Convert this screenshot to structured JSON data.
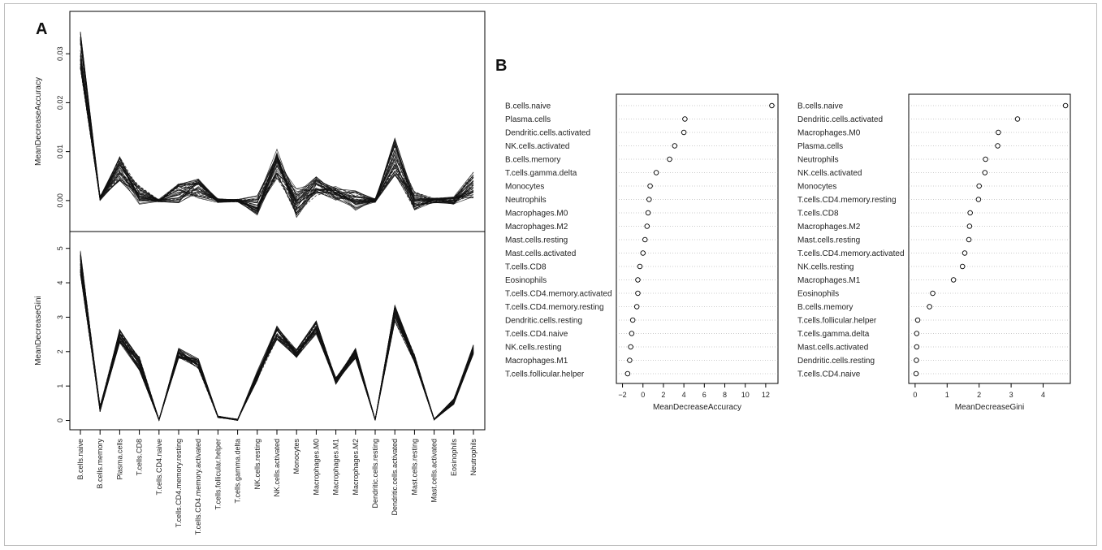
{
  "panels": {
    "a_label": "A",
    "b_label": "B"
  },
  "chart_data": [
    {
      "type": "line",
      "panel": "A",
      "subplot": "top",
      "ylabel": "MeanDecreaseAccuracy",
      "ylim": [
        -0.006,
        0.038
      ],
      "yticks": [
        0.0,
        0.01,
        0.02,
        0.03
      ],
      "ytick_labels": [
        "0.00",
        "0.01",
        "0.02",
        "0.03"
      ],
      "categories": [
        "B.cells.naive",
        "B.cells.memory",
        "Plasma.cells",
        "T.cells.CD8",
        "T.cells.CD4.naive",
        "T.cells.CD4.memory.resting",
        "T.cells.CD4.memory.activated",
        "T.cells.follicular.helper",
        "T.cells.gamma.delta",
        "NK.cells.resting",
        "NK.cells.activated",
        "Monocytes",
        "Macrophages.M0",
        "Macrophages.M1",
        "Macrophages.M2",
        "Dendritic.cells.resting",
        "Dendritic.cells.activated",
        "Mast.cells.resting",
        "Mast.cells.activated",
        "Eosinophils",
        "Neutrophils"
      ],
      "mean_values": [
        0.031,
        0.0005,
        0.0065,
        0.001,
        0.0,
        0.0015,
        0.0025,
        0.0,
        0.0,
        -0.001,
        0.0075,
        -0.0005,
        0.003,
        0.0015,
        0.0,
        0.0,
        0.009,
        0.0,
        0.0,
        0.0,
        0.003
      ],
      "spread": [
        0.004,
        0.0005,
        0.0025,
        0.002,
        0.0003,
        0.002,
        0.002,
        0.0004,
        0.0003,
        0.002,
        0.003,
        0.003,
        0.002,
        0.0015,
        0.002,
        0.0004,
        0.004,
        0.002,
        0.0005,
        0.0008,
        0.003
      ],
      "n_runs": 40
    },
    {
      "type": "line",
      "panel": "A",
      "subplot": "bottom",
      "ylabel": "MeanDecreaseGini",
      "ylim": [
        -0.2,
        5.3
      ],
      "yticks": [
        0,
        1,
        2,
        3,
        4,
        5
      ],
      "ytick_labels": [
        "0",
        "1",
        "2",
        "3",
        "4",
        "5"
      ],
      "mean_values": [
        4.6,
        0.35,
        2.45,
        1.65,
        0.02,
        1.95,
        1.65,
        0.1,
        0.02,
        1.3,
        2.55,
        1.95,
        2.7,
        1.15,
        1.95,
        0.02,
        3.1,
        1.8,
        0.03,
        0.55,
        2.05
      ],
      "spread": [
        0.35,
        0.1,
        0.2,
        0.2,
        0.02,
        0.15,
        0.15,
        0.03,
        0.02,
        0.15,
        0.2,
        0.12,
        0.2,
        0.1,
        0.15,
        0.02,
        0.25,
        0.12,
        0.02,
        0.08,
        0.15
      ],
      "n_runs": 40
    },
    {
      "type": "scatter",
      "panel": "B",
      "subplot": "left",
      "xlabel": "MeanDecreaseAccuracy",
      "xlim": [
        -2.6,
        13.2
      ],
      "xticks": [
        -2,
        0,
        2,
        4,
        6,
        8,
        10,
        12
      ],
      "xtick_labels": [
        "−2",
        "0",
        "2",
        "4",
        "6",
        "8",
        "10",
        "12"
      ],
      "categories": [
        "B.cells.naive",
        "Plasma.cells",
        "Dendritic.cells.activated",
        "NK.cells.activated",
        "B.cells.memory",
        "T.cells.gamma.delta",
        "Monocytes",
        "Neutrophils",
        "Macrophages.M0",
        "Macrophages.M2",
        "Mast.cells.resting",
        "Mast.cells.activated",
        "T.cells.CD8",
        "Eosinophils",
        "T.cells.CD4.memory.activated",
        "T.cells.CD4.memory.resting",
        "Dendritic.cells.resting",
        "T.cells.CD4.naive",
        "NK.cells.resting",
        "Macrophages.M1",
        "T.cells.follicular.helper"
      ],
      "values": [
        12.6,
        4.1,
        4.0,
        3.1,
        2.6,
        1.3,
        0.7,
        0.6,
        0.5,
        0.4,
        0.2,
        0.0,
        -0.3,
        -0.5,
        -0.5,
        -0.6,
        -1.0,
        -1.1,
        -1.2,
        -1.3,
        -1.5
      ]
    },
    {
      "type": "scatter",
      "panel": "B",
      "subplot": "right",
      "xlabel": "MeanDecreaseGini",
      "xlim": [
        -0.2,
        4.85
      ],
      "xticks": [
        0,
        1,
        2,
        3,
        4
      ],
      "xtick_labels": [
        "0",
        "1",
        "2",
        "3",
        "4"
      ],
      "categories": [
        "B.cells.naive",
        "Dendritic.cells.activated",
        "Macrophages.M0",
        "Plasma.cells",
        "Neutrophils",
        "NK.cells.activated",
        "Monocytes",
        "T.cells.CD4.memory.resting",
        "T.cells.CD8",
        "Macrophages.M2",
        "Mast.cells.resting",
        "T.cells.CD4.memory.activated",
        "NK.cells.resting",
        "Macrophages.M1",
        "Eosinophils",
        "B.cells.memory",
        "T.cells.follicular.helper",
        "T.cells.gamma.delta",
        "Mast.cells.activated",
        "Dendritic.cells.resting",
        "T.cells.CD4.naive"
      ],
      "values": [
        4.7,
        3.2,
        2.6,
        2.58,
        2.2,
        2.18,
        2.0,
        1.98,
        1.72,
        1.7,
        1.68,
        1.55,
        1.48,
        1.2,
        0.55,
        0.45,
        0.08,
        0.05,
        0.05,
        0.04,
        0.03
      ]
    }
  ]
}
